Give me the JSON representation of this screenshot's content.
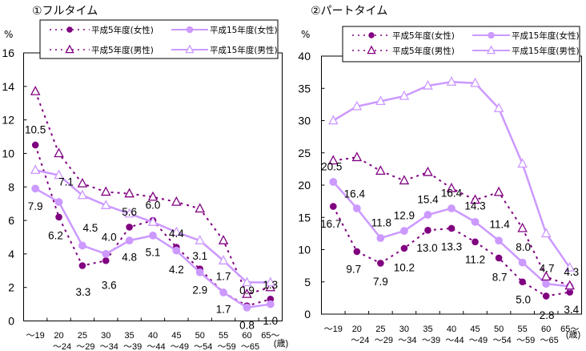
{
  "colors": {
    "h5_series": "#800080",
    "h15_series": "#cc99ff",
    "axis": "#000000",
    "background": "#ffffff"
  },
  "chart_data": [
    {
      "type": "line",
      "title": "①フルタイム",
      "ylabel": "%",
      "xlabel": "(歳)",
      "ylim": [
        0,
        16
      ],
      "yticks": [
        0,
        2,
        4,
        6,
        8,
        10,
        12,
        14,
        16
      ],
      "grid": false,
      "legend_placement": "top",
      "categories": [
        "～19",
        "20～24",
        "25～29",
        "30～34",
        "35～39",
        "40～44",
        "45～49",
        "50～54",
        "55～59",
        "60～65",
        "65～"
      ],
      "xtick_lines": {
        "line1": [
          "～19",
          "20",
          "25",
          "30",
          "35",
          "40",
          "45",
          "50",
          "55",
          "60",
          "65～"
        ],
        "line2": [
          "",
          "～24",
          "～29",
          "～34",
          "～39",
          "～44",
          "～49",
          "～54",
          "～59",
          "～65",
          ""
        ]
      },
      "series": [
        {
          "name": "平成5年度(女性)",
          "color": "#800080",
          "line_style": "dotted",
          "marker": "filled-circle",
          "values": [
            10.5,
            6.2,
            3.3,
            3.6,
            5.6,
            6.0,
            4.4,
            3.1,
            1.7,
            0.9,
            1.3
          ],
          "data_labels": [
            "10.5",
            "6.2",
            "3.3",
            "3.6",
            "5.6",
            "6.0",
            "4.4",
            "3.1",
            "1.7",
            "0.9",
            "1.3"
          ]
        },
        {
          "name": "平成15年度(女性)",
          "color": "#cc99ff",
          "line_style": "solid",
          "marker": "filled-circle",
          "values": [
            7.9,
            7.1,
            4.5,
            4.0,
            4.8,
            5.1,
            4.2,
            2.9,
            1.7,
            0.8,
            1.0
          ],
          "data_labels": [
            "7.9",
            "7.1",
            "4.5",
            "4.0",
            "4.8",
            "5.1",
            "4.2",
            "2.9",
            "1.7",
            "0.8",
            "1.0"
          ]
        },
        {
          "name": "平成5年度(男性)",
          "color": "#800080",
          "line_style": "dotted",
          "marker": "open-triangle",
          "values": [
            13.7,
            10.0,
            8.2,
            7.7,
            7.6,
            7.4,
            7.1,
            6.7,
            4.8,
            1.6,
            2.0
          ]
        },
        {
          "name": "平成15年度(男性)",
          "color": "#cc99ff",
          "line_style": "solid",
          "marker": "open-triangle",
          "values": [
            9.0,
            8.7,
            7.5,
            6.9,
            6.4,
            5.9,
            5.3,
            4.8,
            3.6,
            2.3,
            2.3
          ]
        }
      ]
    },
    {
      "type": "line",
      "title": "②パートタイム",
      "ylabel": "%",
      "xlabel": "(歳)",
      "ylim": [
        0,
        40
      ],
      "yticks": [
        0,
        5,
        10,
        15,
        20,
        25,
        30,
        35,
        40
      ],
      "grid": false,
      "legend_placement": "top",
      "categories": [
        "～19",
        "20～24",
        "25～29",
        "30～34",
        "35～39",
        "40～44",
        "45～49",
        "50～54",
        "55～59",
        "60～65",
        "65～"
      ],
      "xtick_lines": {
        "line1": [
          "～19",
          "20",
          "25",
          "30",
          "35",
          "40",
          "45",
          "50",
          "55",
          "60",
          "65～"
        ],
        "line2": [
          "",
          "～24",
          "～29",
          "～34",
          "～39",
          "～44",
          "～49",
          "～54",
          "～59",
          "～65",
          ""
        ]
      },
      "series": [
        {
          "name": "平成5年度(女性)",
          "color": "#800080",
          "line_style": "dotted",
          "marker": "filled-circle",
          "values": [
            16.7,
            9.7,
            7.9,
            10.2,
            13.0,
            13.3,
            11.2,
            8.7,
            5.0,
            2.8,
            3.4
          ],
          "data_labels": [
            "16.7",
            "9.7",
            "7.9",
            "10.2",
            "13.0",
            "13.3",
            "11.2",
            "8.7",
            "5.0",
            "2.8",
            "3.4"
          ]
        },
        {
          "name": "平成15年度(女性)",
          "color": "#cc99ff",
          "line_style": "solid",
          "marker": "filled-circle",
          "values": [
            20.5,
            16.4,
            11.8,
            12.9,
            15.4,
            16.4,
            14.3,
            11.4,
            8.0,
            4.7,
            4.3
          ],
          "data_labels": [
            "20.5",
            "16.4",
            "11.8",
            "12.9",
            "15.4",
            "16.4",
            "14.3",
            "11.4",
            "8.0",
            "4.7",
            "4.3"
          ]
        },
        {
          "name": "平成5年度(男性)",
          "color": "#800080",
          "line_style": "dotted",
          "marker": "open-triangle",
          "values": [
            23.8,
            24.3,
            22.2,
            20.7,
            22.0,
            19.5,
            17.7,
            18.9,
            13.3,
            5.8,
            4.4
          ]
        },
        {
          "name": "平成15年度(男性)",
          "color": "#cc99ff",
          "line_style": "solid",
          "marker": "open-triangle",
          "values": [
            30.0,
            32.2,
            33.0,
            33.8,
            35.4,
            36.0,
            35.8,
            31.9,
            23.3,
            12.5,
            7.2
          ]
        }
      ]
    }
  ]
}
